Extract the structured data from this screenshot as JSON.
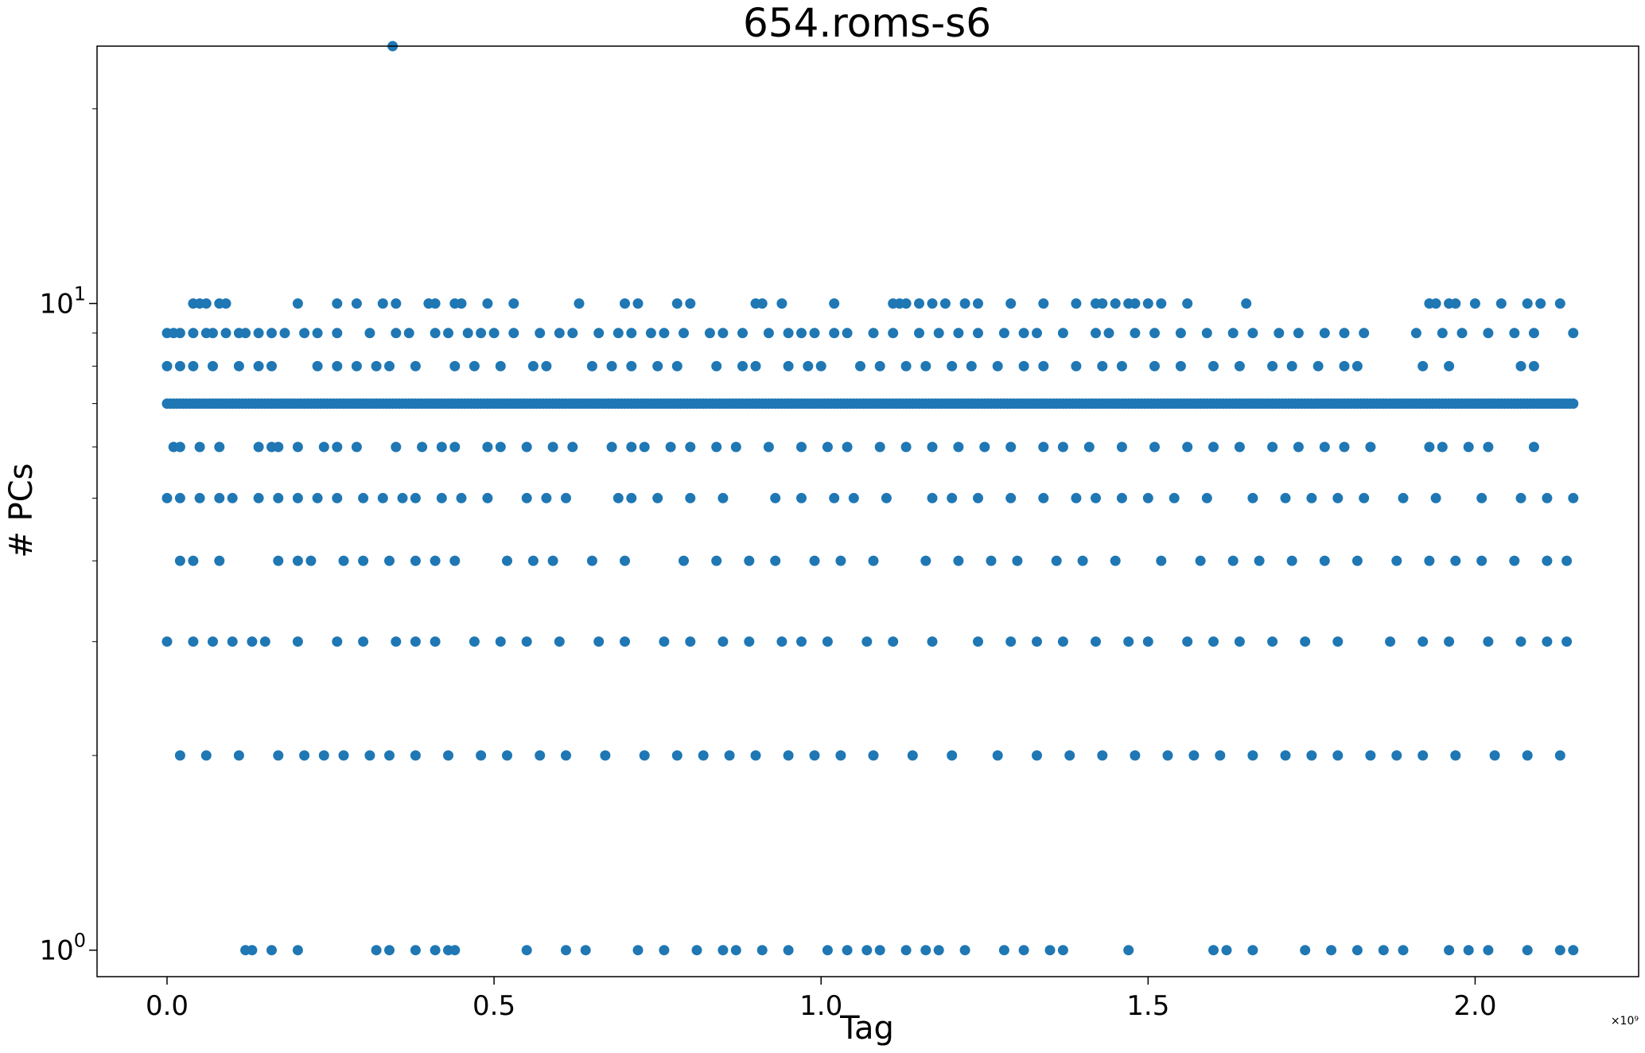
{
  "chart_data": {
    "type": "scatter",
    "title": "654.roms-s6",
    "xlabel": "Tag",
    "ylabel": "# PCs",
    "x_offset_label": "×10⁹",
    "x_scale": 1000000000.0,
    "xlim": [
      -0.107,
      2.25
    ],
    "ylim": [
      0.91,
      25
    ],
    "y_scale": "log",
    "grid": false,
    "legend": "none",
    "marker_color": "#1f77b4",
    "x_ticks": [
      {
        "value": 0.0,
        "label": "0.0"
      },
      {
        "value": 0.5,
        "label": "0.5"
      },
      {
        "value": 1.0,
        "label": "1.0"
      },
      {
        "value": 1.5,
        "label": "1.5"
      },
      {
        "value": 2.0,
        "label": "2.0"
      }
    ],
    "y_ticks": [
      {
        "value": 1,
        "base": "10",
        "exp": "0"
      },
      {
        "value": 10,
        "base": "10",
        "exp": "1"
      }
    ],
    "y_minor_ticks": [
      2,
      3,
      4,
      5,
      6,
      7,
      8,
      9,
      20
    ],
    "series": [
      {
        "y": 25,
        "x": [
          0.345
        ]
      },
      {
        "y": 10,
        "x": [
          0.04,
          0.05,
          0.06,
          0.08,
          0.09,
          0.2,
          0.26,
          0.29,
          0.33,
          0.35,
          0.4,
          0.41,
          0.44,
          0.45,
          0.49,
          0.53,
          0.63,
          0.7,
          0.72,
          0.78,
          0.8,
          0.9,
          0.91,
          0.94,
          1.02,
          1.11,
          1.12,
          1.13,
          1.15,
          1.17,
          1.19,
          1.22,
          1.24,
          1.29,
          1.34,
          1.39,
          1.42,
          1.43,
          1.45,
          1.47,
          1.48,
          1.5,
          1.52,
          1.56,
          1.65,
          1.93,
          1.94,
          1.96,
          1.97,
          2.0,
          2.04,
          2.08,
          2.1,
          2.13
        ]
      },
      {
        "y": 9,
        "x": [
          0.0,
          0.01,
          0.02,
          0.04,
          0.06,
          0.07,
          0.09,
          0.11,
          0.12,
          0.14,
          0.16,
          0.18,
          0.21,
          0.23,
          0.26,
          0.31,
          0.35,
          0.37,
          0.41,
          0.43,
          0.46,
          0.48,
          0.5,
          0.53,
          0.57,
          0.6,
          0.62,
          0.66,
          0.69,
          0.71,
          0.74,
          0.76,
          0.79,
          0.83,
          0.85,
          0.88,
          0.92,
          0.95,
          0.97,
          0.99,
          1.02,
          1.04,
          1.08,
          1.11,
          1.15,
          1.18,
          1.21,
          1.24,
          1.28,
          1.31,
          1.33,
          1.37,
          1.42,
          1.44,
          1.48,
          1.51,
          1.55,
          1.59,
          1.63,
          1.66,
          1.7,
          1.73,
          1.77,
          1.8,
          1.83,
          1.91,
          1.95,
          1.98,
          2.02,
          2.06,
          2.09,
          2.15
        ]
      },
      {
        "y": 8,
        "x": [
          0.0,
          0.02,
          0.04,
          0.07,
          0.11,
          0.14,
          0.16,
          0.23,
          0.26,
          0.29,
          0.32,
          0.34,
          0.38,
          0.44,
          0.47,
          0.51,
          0.56,
          0.58,
          0.65,
          0.68,
          0.71,
          0.75,
          0.78,
          0.84,
          0.88,
          0.9,
          0.95,
          0.98,
          1.0,
          1.06,
          1.09,
          1.13,
          1.16,
          1.2,
          1.23,
          1.27,
          1.31,
          1.34,
          1.39,
          1.43,
          1.46,
          1.51,
          1.55,
          1.6,
          1.64,
          1.69,
          1.72,
          1.76,
          1.8,
          1.82,
          1.92,
          1.96,
          2.07,
          2.09
        ]
      },
      {
        "y": 7,
        "x_start": 0.0,
        "x_end": 2.15,
        "x_step": 0.005
      },
      {
        "y": 6,
        "x": [
          0.01,
          0.02,
          0.05,
          0.08,
          0.14,
          0.16,
          0.17,
          0.2,
          0.24,
          0.26,
          0.29,
          0.35,
          0.39,
          0.42,
          0.44,
          0.49,
          0.51,
          0.55,
          0.59,
          0.62,
          0.68,
          0.71,
          0.73,
          0.77,
          0.8,
          0.84,
          0.87,
          0.92,
          0.97,
          1.01,
          1.04,
          1.09,
          1.13,
          1.17,
          1.21,
          1.25,
          1.29,
          1.34,
          1.37,
          1.41,
          1.46,
          1.51,
          1.56,
          1.6,
          1.64,
          1.69,
          1.73,
          1.77,
          1.8,
          1.84,
          1.93,
          1.95,
          1.99,
          2.02,
          2.09
        ]
      },
      {
        "y": 5,
        "x": [
          0.0,
          0.02,
          0.05,
          0.08,
          0.1,
          0.14,
          0.17,
          0.2,
          0.23,
          0.26,
          0.3,
          0.33,
          0.36,
          0.38,
          0.42,
          0.45,
          0.49,
          0.55,
          0.58,
          0.61,
          0.69,
          0.71,
          0.75,
          0.8,
          0.85,
          0.93,
          0.97,
          1.02,
          1.05,
          1.1,
          1.17,
          1.2,
          1.24,
          1.29,
          1.34,
          1.39,
          1.42,
          1.46,
          1.5,
          1.54,
          1.59,
          1.66,
          1.71,
          1.75,
          1.79,
          1.83,
          1.89,
          1.94,
          2.01,
          2.07,
          2.11,
          2.15
        ]
      },
      {
        "y": 4,
        "x": [
          0.02,
          0.04,
          0.08,
          0.17,
          0.2,
          0.22,
          0.27,
          0.3,
          0.34,
          0.38,
          0.41,
          0.44,
          0.52,
          0.56,
          0.59,
          0.65,
          0.7,
          0.79,
          0.84,
          0.89,
          0.93,
          0.99,
          1.03,
          1.08,
          1.16,
          1.21,
          1.26,
          1.3,
          1.36,
          1.4,
          1.45,
          1.52,
          1.58,
          1.63,
          1.67,
          1.72,
          1.77,
          1.82,
          1.88,
          1.93,
          1.97,
          2.01,
          2.06,
          2.11,
          2.14
        ]
      },
      {
        "y": 3,
        "x": [
          0.0,
          0.04,
          0.07,
          0.1,
          0.13,
          0.15,
          0.2,
          0.26,
          0.3,
          0.35,
          0.38,
          0.41,
          0.47,
          0.51,
          0.55,
          0.6,
          0.66,
          0.7,
          0.76,
          0.8,
          0.85,
          0.89,
          0.94,
          0.97,
          1.01,
          1.07,
          1.11,
          1.17,
          1.24,
          1.29,
          1.33,
          1.37,
          1.42,
          1.47,
          1.5,
          1.56,
          1.6,
          1.64,
          1.69,
          1.74,
          1.79,
          1.87,
          1.92,
          1.96,
          2.02,
          2.07,
          2.11,
          2.14
        ]
      },
      {
        "y": 2,
        "x": [
          0.02,
          0.06,
          0.11,
          0.17,
          0.21,
          0.24,
          0.27,
          0.31,
          0.34,
          0.38,
          0.43,
          0.48,
          0.52,
          0.57,
          0.61,
          0.67,
          0.73,
          0.78,
          0.82,
          0.86,
          0.9,
          0.95,
          0.99,
          1.03,
          1.08,
          1.14,
          1.2,
          1.27,
          1.33,
          1.38,
          1.43,
          1.48,
          1.53,
          1.57,
          1.61,
          1.66,
          1.71,
          1.75,
          1.79,
          1.84,
          1.88,
          1.92,
          1.97,
          2.03,
          2.08,
          2.13
        ]
      },
      {
        "y": 1,
        "x": [
          0.12,
          0.13,
          0.16,
          0.2,
          0.32,
          0.34,
          0.38,
          0.41,
          0.43,
          0.44,
          0.55,
          0.61,
          0.64,
          0.72,
          0.76,
          0.81,
          0.85,
          0.87,
          0.91,
          0.95,
          1.01,
          1.04,
          1.07,
          1.09,
          1.13,
          1.16,
          1.18,
          1.22,
          1.28,
          1.31,
          1.35,
          1.37,
          1.47,
          1.6,
          1.62,
          1.66,
          1.74,
          1.78,
          1.82,
          1.86,
          1.89,
          1.96,
          1.99,
          2.02,
          2.08,
          2.13,
          2.15
        ]
      }
    ]
  }
}
